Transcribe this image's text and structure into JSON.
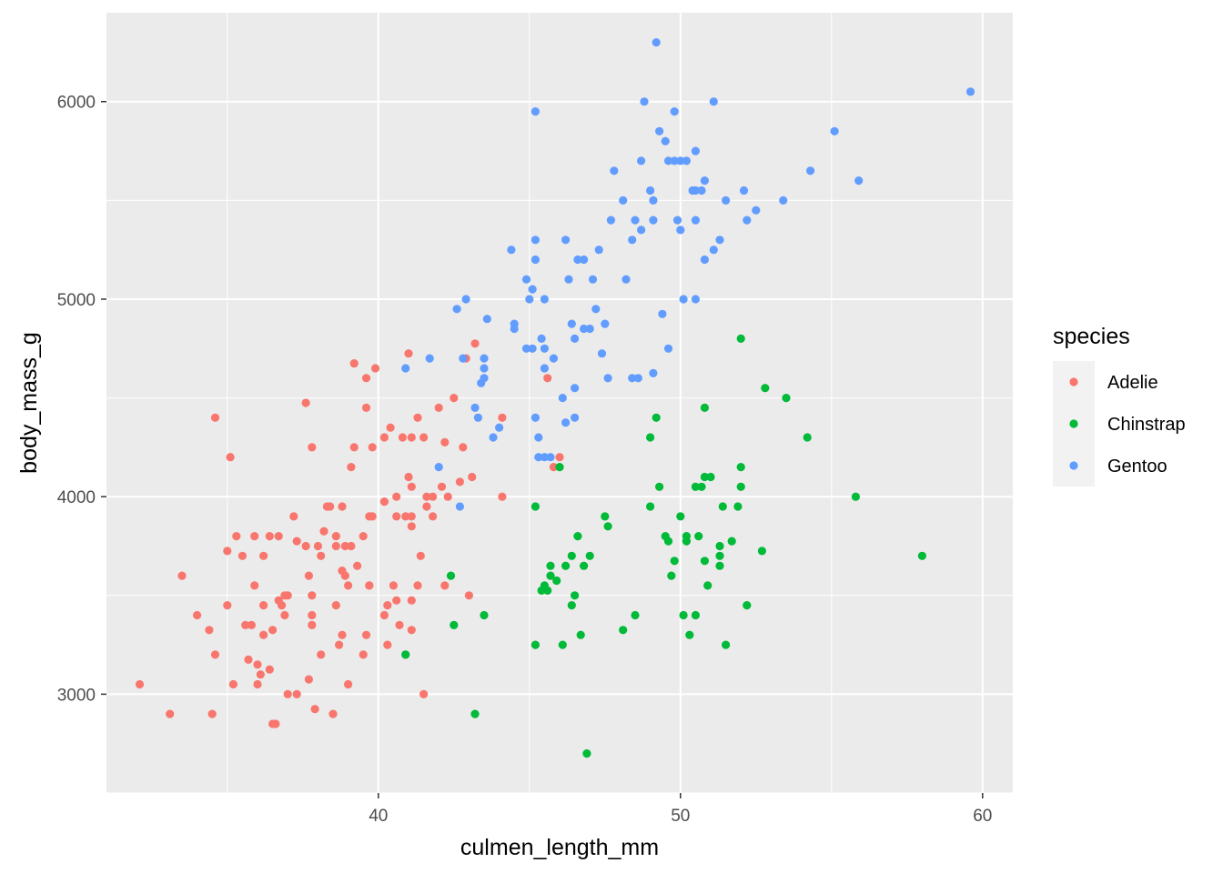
{
  "chart_data": {
    "type": "scatter",
    "title": "",
    "xlabel": "culmen_length_mm",
    "ylabel": "body_mass_g",
    "xlim": [
      31.0,
      61.0
    ],
    "ylim": [
      2500,
      6450
    ],
    "x_ticks": [
      40,
      50,
      60
    ],
    "y_ticks": [
      3000,
      4000,
      5000,
      6000
    ],
    "grid": true,
    "legend": {
      "title": "species",
      "position": "right"
    },
    "series": [
      {
        "name": "Adelie",
        "color": "#F8766D",
        "points": [
          [
            32.1,
            3050
          ],
          [
            33.1,
            2900
          ],
          [
            33.5,
            3600
          ],
          [
            34.0,
            3400
          ],
          [
            34.4,
            3325
          ],
          [
            34.5,
            2900
          ],
          [
            34.6,
            4400
          ],
          [
            34.6,
            3200
          ],
          [
            35.0,
            3450
          ],
          [
            35.1,
            4200
          ],
          [
            35.0,
            3725
          ],
          [
            35.2,
            3050
          ],
          [
            35.3,
            3800
          ],
          [
            35.5,
            3700
          ],
          [
            35.6,
            3350
          ],
          [
            35.7,
            3175
          ],
          [
            35.9,
            3550
          ],
          [
            36.0,
            3150
          ],
          [
            35.8,
            3350
          ],
          [
            35.9,
            3800
          ],
          [
            36.0,
            3050
          ],
          [
            36.1,
            3100
          ],
          [
            36.2,
            3450
          ],
          [
            36.2,
            3700
          ],
          [
            36.2,
            3300
          ],
          [
            36.4,
            3125
          ],
          [
            36.4,
            3800
          ],
          [
            36.5,
            2850
          ],
          [
            36.6,
            2850
          ],
          [
            36.5,
            3325
          ],
          [
            36.7,
            3475
          ],
          [
            36.7,
            3800
          ],
          [
            36.8,
            3450
          ],
          [
            36.9,
            3500
          ],
          [
            37.0,
            3500
          ],
          [
            37.0,
            3000
          ],
          [
            36.9,
            3400
          ],
          [
            37.3,
            3000
          ],
          [
            37.2,
            3900
          ],
          [
            37.3,
            3775
          ],
          [
            37.6,
            3750
          ],
          [
            37.7,
            3600
          ],
          [
            37.7,
            3075
          ],
          [
            37.8,
            3350
          ],
          [
            37.8,
            3400
          ],
          [
            37.8,
            3500
          ],
          [
            37.6,
            4475
          ],
          [
            37.8,
            4250
          ],
          [
            37.9,
            2925
          ],
          [
            38.0,
            3750
          ],
          [
            38.1,
            3700
          ],
          [
            38.2,
            3825
          ],
          [
            38.1,
            3200
          ],
          [
            38.3,
            3950
          ],
          [
            38.4,
            3950
          ],
          [
            38.5,
            2900
          ],
          [
            38.6,
            3800
          ],
          [
            38.6,
            3750
          ],
          [
            38.6,
            3450
          ],
          [
            38.7,
            3250
          ],
          [
            38.8,
            3950
          ],
          [
            38.8,
            3300
          ],
          [
            38.9,
            3600
          ],
          [
            38.9,
            3750
          ],
          [
            38.8,
            3625
          ],
          [
            39.0,
            3550
          ],
          [
            39.0,
            3050
          ],
          [
            39.1,
            3750
          ],
          [
            39.1,
            4150
          ],
          [
            39.2,
            4675
          ],
          [
            39.2,
            4250
          ],
          [
            39.3,
            3650
          ],
          [
            39.5,
            3800
          ],
          [
            39.5,
            3200
          ],
          [
            39.6,
            4450
          ],
          [
            39.6,
            4600
          ],
          [
            39.7,
            3550
          ],
          [
            39.7,
            3900
          ],
          [
            39.6,
            3300
          ],
          [
            39.8,
            4250
          ],
          [
            39.8,
            3900
          ],
          [
            39.7,
            3550
          ],
          [
            39.9,
            4650
          ],
          [
            40.2,
            4300
          ],
          [
            40.2,
            3400
          ],
          [
            40.3,
            3450
          ],
          [
            40.3,
            3250
          ],
          [
            40.4,
            4350
          ],
          [
            40.2,
            3975
          ],
          [
            40.6,
            4000
          ],
          [
            40.5,
            3550
          ],
          [
            40.6,
            3475
          ],
          [
            40.6,
            3900
          ],
          [
            40.7,
            3350
          ],
          [
            40.8,
            4300
          ],
          [
            40.9,
            3900
          ],
          [
            40.9,
            3200
          ],
          [
            41.0,
            4725
          ],
          [
            41.1,
            4300
          ],
          [
            41.1,
            3900
          ],
          [
            41.1,
            3475
          ],
          [
            41.1,
            3850
          ],
          [
            41.1,
            3325
          ],
          [
            41.0,
            4100
          ],
          [
            41.1,
            4050
          ],
          [
            41.3,
            3550
          ],
          [
            41.3,
            4400
          ],
          [
            41.4,
            3700
          ],
          [
            41.5,
            3000
          ],
          [
            41.6,
            4000
          ],
          [
            41.6,
            3950
          ],
          [
            41.5,
            4300
          ],
          [
            41.8,
            3900
          ],
          [
            42.0,
            4450
          ],
          [
            42.1,
            4050
          ],
          [
            42.2,
            4275
          ],
          [
            42.2,
            3550
          ],
          [
            42.3,
            4000
          ],
          [
            42.5,
            4500
          ],
          [
            42.7,
            4075
          ],
          [
            42.8,
            4250
          ],
          [
            42.9,
            4700
          ],
          [
            43.1,
            4100
          ],
          [
            43.2,
            4775
          ],
          [
            43.0,
            3500
          ],
          [
            44.1,
            4000
          ],
          [
            44.1,
            4400
          ],
          [
            45.6,
            4600
          ],
          [
            45.8,
            4150
          ],
          [
            46.0,
            4200
          ],
          [
            41.8,
            4000
          ]
        ]
      },
      {
        "name": "Chinstrap",
        "color": "#00BA38",
        "points": [
          [
            40.9,
            3200
          ],
          [
            42.4,
            3600
          ],
          [
            42.5,
            3350
          ],
          [
            43.2,
            2900
          ],
          [
            43.5,
            3400
          ],
          [
            45.2,
            3250
          ],
          [
            45.2,
            3950
          ],
          [
            45.4,
            3525
          ],
          [
            45.5,
            3550
          ],
          [
            45.6,
            3525
          ],
          [
            45.7,
            3650
          ],
          [
            45.7,
            3600
          ],
          [
            45.9,
            3575
          ],
          [
            46.0,
            4150
          ],
          [
            46.1,
            3250
          ],
          [
            46.2,
            3650
          ],
          [
            46.4,
            3700
          ],
          [
            46.4,
            3450
          ],
          [
            46.5,
            3500
          ],
          [
            46.6,
            3800
          ],
          [
            46.7,
            3300
          ],
          [
            46.8,
            3650
          ],
          [
            46.9,
            2700
          ],
          [
            47.0,
            3700
          ],
          [
            47.5,
            3900
          ],
          [
            47.6,
            3850
          ],
          [
            48.1,
            3325
          ],
          [
            48.5,
            3400
          ],
          [
            49.0,
            4300
          ],
          [
            49.0,
            3950
          ],
          [
            49.2,
            4400
          ],
          [
            49.3,
            4050
          ],
          [
            49.5,
            3800
          ],
          [
            49.6,
            3775
          ],
          [
            49.7,
            3600
          ],
          [
            49.8,
            3675
          ],
          [
            50.0,
            3900
          ],
          [
            50.1,
            3400
          ],
          [
            50.2,
            3775
          ],
          [
            50.2,
            3800
          ],
          [
            50.3,
            3300
          ],
          [
            50.5,
            4050
          ],
          [
            50.5,
            3400
          ],
          [
            50.6,
            3800
          ],
          [
            50.7,
            4050
          ],
          [
            50.8,
            4100
          ],
          [
            50.8,
            4450
          ],
          [
            50.8,
            3675
          ],
          [
            50.9,
            3550
          ],
          [
            51.0,
            4100
          ],
          [
            51.3,
            3750
          ],
          [
            51.3,
            3650
          ],
          [
            51.4,
            3950
          ],
          [
            51.5,
            3250
          ],
          [
            51.7,
            3775
          ],
          [
            51.9,
            3950
          ],
          [
            52.0,
            4800
          ],
          [
            52.0,
            4150
          ],
          [
            52.0,
            4050
          ],
          [
            52.2,
            3450
          ],
          [
            52.7,
            3725
          ],
          [
            52.8,
            4550
          ],
          [
            53.5,
            4500
          ],
          [
            54.2,
            4300
          ],
          [
            55.8,
            4000
          ],
          [
            58.0,
            3700
          ],
          [
            51.3,
            3700
          ]
        ]
      },
      {
        "name": "Gentoo",
        "color": "#619CFF",
        "points": [
          [
            40.9,
            4650
          ],
          [
            41.7,
            4700
          ],
          [
            42.0,
            4150
          ],
          [
            42.6,
            4950
          ],
          [
            42.7,
            3950
          ],
          [
            42.8,
            4700
          ],
          [
            42.9,
            5000
          ],
          [
            43.2,
            4450
          ],
          [
            43.3,
            4400
          ],
          [
            43.4,
            4575
          ],
          [
            43.5,
            4600
          ],
          [
            43.5,
            4700
          ],
          [
            43.6,
            4900
          ],
          [
            43.5,
            4650
          ],
          [
            43.8,
            4300
          ],
          [
            44.0,
            4350
          ],
          [
            44.4,
            5250
          ],
          [
            44.5,
            4850
          ],
          [
            44.5,
            4875
          ],
          [
            44.9,
            5100
          ],
          [
            44.9,
            4750
          ],
          [
            45.0,
            5000
          ],
          [
            45.1,
            5050
          ],
          [
            45.1,
            4750
          ],
          [
            45.2,
            5300
          ],
          [
            45.2,
            5950
          ],
          [
            45.2,
            4400
          ],
          [
            45.2,
            5200
          ],
          [
            45.3,
            4200
          ],
          [
            45.3,
            4300
          ],
          [
            45.4,
            4800
          ],
          [
            45.5,
            4750
          ],
          [
            45.5,
            4200
          ],
          [
            45.5,
            4650
          ],
          [
            45.5,
            5000
          ],
          [
            45.7,
            4200
          ],
          [
            45.8,
            4700
          ],
          [
            46.1,
            4500
          ],
          [
            46.2,
            4375
          ],
          [
            46.2,
            5300
          ],
          [
            46.3,
            5100
          ],
          [
            46.4,
            4875
          ],
          [
            46.5,
            4550
          ],
          [
            46.5,
            4800
          ],
          [
            46.6,
            5200
          ],
          [
            46.8,
            5200
          ],
          [
            46.8,
            4850
          ],
          [
            46.5,
            4400
          ],
          [
            47.0,
            4850
          ],
          [
            47.1,
            5100
          ],
          [
            47.2,
            4950
          ],
          [
            47.3,
            5250
          ],
          [
            47.4,
            4725
          ],
          [
            47.6,
            4600
          ],
          [
            47.5,
            4875
          ],
          [
            47.7,
            5400
          ],
          [
            47.8,
            5650
          ],
          [
            48.1,
            5500
          ],
          [
            48.2,
            5100
          ],
          [
            48.4,
            4600
          ],
          [
            48.4,
            5300
          ],
          [
            48.5,
            5400
          ],
          [
            48.6,
            4600
          ],
          [
            48.7,
            5350
          ],
          [
            48.7,
            5700
          ],
          [
            48.8,
            6000
          ],
          [
            49.0,
            5550
          ],
          [
            49.1,
            5400
          ],
          [
            49.1,
            4625
          ],
          [
            49.1,
            5500
          ],
          [
            49.2,
            6300
          ],
          [
            49.3,
            5850
          ],
          [
            49.4,
            4925
          ],
          [
            49.5,
            5800
          ],
          [
            49.6,
            5700
          ],
          [
            49.6,
            4750
          ],
          [
            49.8,
            5700
          ],
          [
            49.8,
            5950
          ],
          [
            49.9,
            5400
          ],
          [
            50.0,
            5350
          ],
          [
            50.0,
            5700
          ],
          [
            50.1,
            5000
          ],
          [
            50.2,
            5700
          ],
          [
            50.4,
            5550
          ],
          [
            50.5,
            5550
          ],
          [
            50.5,
            5750
          ],
          [
            50.5,
            5400
          ],
          [
            50.5,
            5000
          ],
          [
            50.7,
            5550
          ],
          [
            50.8,
            5600
          ],
          [
            50.8,
            5200
          ],
          [
            51.1,
            5250
          ],
          [
            51.1,
            6000
          ],
          [
            51.3,
            5300
          ],
          [
            51.5,
            5500
          ],
          [
            52.1,
            5550
          ],
          [
            52.2,
            5400
          ],
          [
            52.5,
            5450
          ],
          [
            53.4,
            5500
          ],
          [
            54.3,
            5650
          ],
          [
            55.1,
            5850
          ],
          [
            55.9,
            5600
          ],
          [
            59.6,
            6050
          ]
        ]
      }
    ]
  }
}
